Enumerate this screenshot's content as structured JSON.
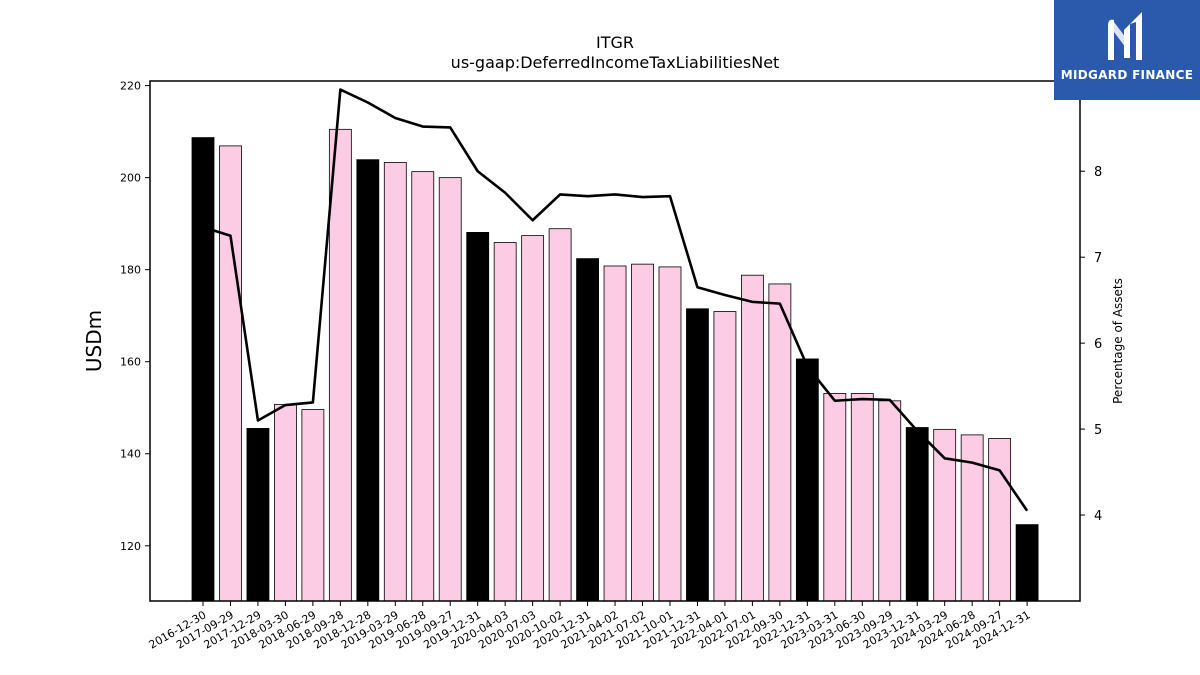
{
  "brand": {
    "name": "MIDGARD FINANCE",
    "icon": "midgard-m-logo-icon",
    "color": "#2b5aad"
  },
  "chart_data": {
    "type": "bar",
    "title": "ITGR",
    "subtitle": "us-gaap:DeferredIncomeTaxLiabilitiesNet",
    "xlabel": "",
    "ylabel": "USDm",
    "ylabel_right": "Percentage of Assets",
    "ylim": [
      108,
      221
    ],
    "ylim_right": [
      3.0,
      9.05
    ],
    "yticks": [
      120,
      140,
      160,
      180,
      200,
      220
    ],
    "yticks_right": [
      4,
      5,
      6,
      7,
      8
    ],
    "categories": [
      "2016-12-30",
      "2017-09-29",
      "2017-12-29",
      "2018-03-30",
      "2018-06-29",
      "2018-09-28",
      "2018-12-28",
      "2019-03-29",
      "2019-06-28",
      "2019-09-27",
      "2019-12-31",
      "2020-04-03",
      "2020-07-03",
      "2020-10-02",
      "2020-12-31",
      "2021-04-02",
      "2021-07-02",
      "2021-10-01",
      "2021-12-31",
      "2022-04-01",
      "2022-07-01",
      "2022-09-30",
      "2022-12-31",
      "2023-03-31",
      "2023-06-30",
      "2023-09-29",
      "2023-12-31",
      "2024-03-29",
      "2024-06-28",
      "2024-09-27",
      "2024-12-31"
    ],
    "series": [
      {
        "values": [
          208.7,
          206.9,
          145.5,
          150.7,
          149.6,
          210.5,
          203.9,
          203.3,
          201.3,
          200.0,
          188.1,
          185.9,
          187.4,
          188.9,
          182.4,
          180.8,
          181.2,
          180.6,
          171.5,
          170.9,
          178.8,
          176.9,
          160.6,
          153.1,
          153.1,
          151.5,
          145.7,
          145.3,
          144.1,
          143.3,
          124.6
        ],
        "year_end": [
          true,
          false,
          true,
          false,
          false,
          false,
          true,
          false,
          false,
          false,
          true,
          false,
          false,
          false,
          true,
          false,
          false,
          false,
          true,
          false,
          false,
          false,
          true,
          false,
          false,
          false,
          true,
          false,
          false,
          false,
          true
        ]
      },
      {
        "axis": "right",
        "type": "line",
        "values": [
          7.35,
          7.25,
          5.1,
          5.28,
          5.31,
          8.95,
          8.8,
          8.62,
          8.52,
          8.51,
          8.0,
          7.75,
          7.43,
          7.73,
          7.71,
          7.73,
          7.7,
          7.71,
          6.65,
          6.56,
          6.48,
          6.46,
          5.73,
          5.33,
          5.35,
          5.34,
          4.98,
          4.66,
          4.61,
          4.52,
          4.05
        ]
      }
    ],
    "colors": {
      "year_end_bar": "#000000",
      "quarter_bar": "#fccce4",
      "bar_edge": "#000000",
      "line": "#000000"
    },
    "grid": false,
    "legend": "none"
  }
}
